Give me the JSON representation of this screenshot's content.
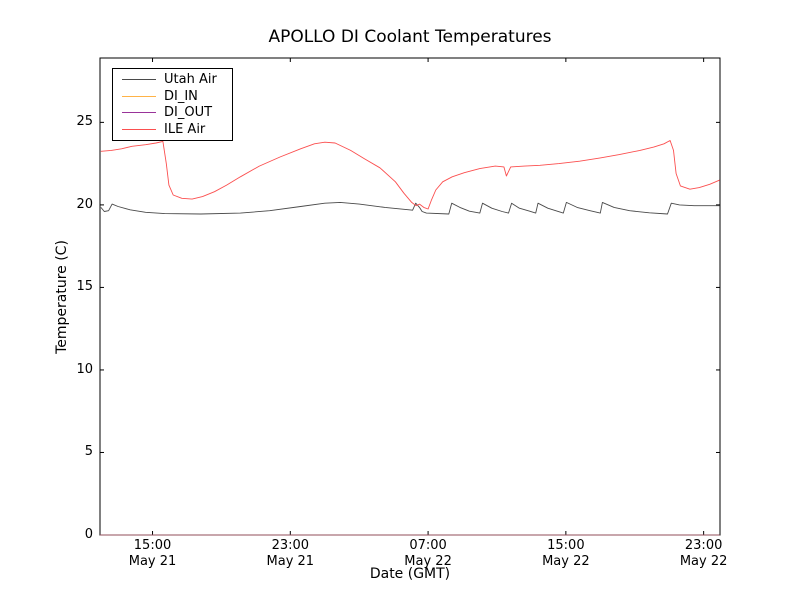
{
  "figure": {
    "background": "#ffffff",
    "frame_color": "#000000",
    "text_color": "#000000"
  },
  "chart_data": {
    "type": "line",
    "title": "APOLLO DI Coolant Temperatures",
    "xlabel": "Date (GMT)",
    "ylabel": "Temperature (C)",
    "x_unit_note": "hours since May 21 00:00 GMT",
    "xlim": [
      11.95,
      47.95
    ],
    "ylim": [
      0,
      28.9
    ],
    "grid": false,
    "legend_position": "upper-left",
    "y_ticks": [
      0,
      5,
      10,
      15,
      20,
      25
    ],
    "x_ticks": [
      {
        "hour": 15,
        "time": "15:00",
        "date": "May 21"
      },
      {
        "hour": 23,
        "time": "23:00",
        "date": "May 21"
      },
      {
        "hour": 31,
        "time": "07:00",
        "date": "May 22"
      },
      {
        "hour": 39,
        "time": "15:00",
        "date": "May 22"
      },
      {
        "hour": 47,
        "time": "23:00",
        "date": "May 22"
      }
    ],
    "series": [
      {
        "name": "Utah Air",
        "color": "#4a4a4a",
        "opacity": 1,
        "points": [
          [
            12.0,
            19.85
          ],
          [
            12.2,
            19.6
          ],
          [
            12.45,
            19.65
          ],
          [
            12.65,
            20.05
          ],
          [
            13.0,
            19.9
          ],
          [
            13.7,
            19.7
          ],
          [
            14.6,
            19.55
          ],
          [
            15.7,
            19.47
          ],
          [
            17.8,
            19.45
          ],
          [
            20.1,
            19.5
          ],
          [
            21.8,
            19.65
          ],
          [
            23.6,
            19.9
          ],
          [
            25.0,
            20.1
          ],
          [
            25.9,
            20.15
          ],
          [
            27.0,
            20.05
          ],
          [
            28.5,
            19.85
          ],
          [
            29.9,
            19.7
          ],
          [
            30.1,
            19.68
          ],
          [
            30.28,
            20.1
          ],
          [
            30.5,
            19.85
          ],
          [
            30.65,
            19.6
          ],
          [
            30.9,
            19.5
          ],
          [
            32.2,
            19.45
          ],
          [
            32.37,
            20.1
          ],
          [
            32.85,
            19.85
          ],
          [
            33.4,
            19.62
          ],
          [
            34.0,
            19.5
          ],
          [
            34.16,
            20.1
          ],
          [
            34.7,
            19.8
          ],
          [
            35.3,
            19.6
          ],
          [
            35.67,
            19.5
          ],
          [
            35.85,
            20.1
          ],
          [
            36.3,
            19.8
          ],
          [
            36.9,
            19.62
          ],
          [
            37.25,
            19.5
          ],
          [
            37.38,
            20.1
          ],
          [
            37.95,
            19.8
          ],
          [
            38.5,
            19.62
          ],
          [
            38.85,
            19.5
          ],
          [
            39.03,
            20.15
          ],
          [
            39.65,
            19.85
          ],
          [
            40.4,
            19.65
          ],
          [
            41.0,
            19.5
          ],
          [
            41.12,
            20.15
          ],
          [
            41.8,
            19.85
          ],
          [
            42.7,
            19.65
          ],
          [
            43.85,
            19.52
          ],
          [
            44.9,
            19.45
          ],
          [
            45.12,
            20.1
          ],
          [
            45.6,
            20.0
          ],
          [
            46.45,
            19.95
          ],
          [
            47.3,
            19.95
          ],
          [
            47.93,
            19.95
          ]
        ]
      },
      {
        "name": "DI_IN",
        "color": "#ffb347",
        "opacity": 0.55,
        "points": [
          [
            11.95,
            0
          ],
          [
            47.93,
            0
          ]
        ]
      },
      {
        "name": "DI_OUT",
        "color": "#993399",
        "opacity": 0.45,
        "points": [
          [
            11.95,
            0
          ],
          [
            47.93,
            0
          ]
        ]
      },
      {
        "name": "ILE Air",
        "color": "#fb4f4f",
        "opacity": 1,
        "points": [
          [
            12.0,
            23.25
          ],
          [
            12.6,
            23.3
          ],
          [
            13.2,
            23.4
          ],
          [
            13.8,
            23.55
          ],
          [
            14.6,
            23.65
          ],
          [
            15.2,
            23.75
          ],
          [
            15.6,
            23.85
          ],
          [
            15.8,
            22.5
          ],
          [
            15.95,
            21.2
          ],
          [
            16.2,
            20.6
          ],
          [
            16.7,
            20.4
          ],
          [
            17.3,
            20.35
          ],
          [
            17.9,
            20.5
          ],
          [
            18.6,
            20.8
          ],
          [
            19.3,
            21.2
          ],
          [
            20.1,
            21.7
          ],
          [
            21.2,
            22.35
          ],
          [
            22.4,
            22.9
          ],
          [
            23.6,
            23.4
          ],
          [
            24.4,
            23.7
          ],
          [
            25.0,
            23.8
          ],
          [
            25.6,
            23.75
          ],
          [
            26.5,
            23.3
          ],
          [
            27.3,
            22.8
          ],
          [
            28.2,
            22.25
          ],
          [
            29.1,
            21.4
          ],
          [
            29.6,
            20.7
          ],
          [
            30.05,
            20.15
          ],
          [
            30.3,
            19.95
          ],
          [
            30.5,
            20.05
          ],
          [
            30.75,
            19.85
          ],
          [
            31.0,
            19.75
          ],
          [
            31.2,
            20.3
          ],
          [
            31.45,
            20.9
          ],
          [
            31.85,
            21.4
          ],
          [
            32.4,
            21.7
          ],
          [
            33.1,
            21.95
          ],
          [
            34.0,
            22.2
          ],
          [
            34.9,
            22.35
          ],
          [
            35.4,
            22.3
          ],
          [
            35.55,
            21.75
          ],
          [
            35.8,
            22.3
          ],
          [
            36.6,
            22.35
          ],
          [
            37.5,
            22.4
          ],
          [
            38.6,
            22.5
          ],
          [
            39.8,
            22.65
          ],
          [
            41.0,
            22.85
          ],
          [
            42.1,
            23.05
          ],
          [
            43.3,
            23.3
          ],
          [
            44.1,
            23.5
          ],
          [
            44.7,
            23.7
          ],
          [
            45.05,
            23.9
          ],
          [
            45.25,
            23.3
          ],
          [
            45.4,
            21.9
          ],
          [
            45.65,
            21.15
          ],
          [
            46.2,
            20.95
          ],
          [
            46.75,
            21.05
          ],
          [
            47.35,
            21.25
          ],
          [
            47.93,
            21.5
          ]
        ]
      }
    ]
  }
}
